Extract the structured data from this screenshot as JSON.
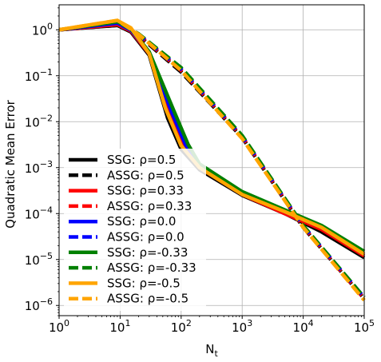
{
  "chart_data": {
    "type": "line",
    "title": "",
    "xlabel": "N",
    "xlabel_sub": "t",
    "ylabel": "Quadratic Mean Error",
    "xscale": "log",
    "yscale": "log",
    "xlim": [
      1,
      100000
    ],
    "ylim": [
      6e-07,
      3.5
    ],
    "grid": true,
    "legend_position": "lower-left",
    "x_ticks": [
      {
        "base": "10",
        "exp": "0"
      },
      {
        "base": "10",
        "exp": "1"
      },
      {
        "base": "10",
        "exp": "2"
      },
      {
        "base": "10",
        "exp": "3"
      },
      {
        "base": "10",
        "exp": "4"
      },
      {
        "base": "10",
        "exp": "5"
      }
    ],
    "y_ticks": [
      {
        "base": "10",
        "exp": "−6"
      },
      {
        "base": "10",
        "exp": "−5"
      },
      {
        "base": "10",
        "exp": "−4"
      },
      {
        "base": "10",
        "exp": "−3"
      },
      {
        "base": "10",
        "exp": "−2"
      },
      {
        "base": "10",
        "exp": "−1"
      },
      {
        "base": "10",
        "exp": "0"
      }
    ],
    "series": [
      {
        "name": "SSG: ρ=0.5",
        "color": "#000000",
        "style": "solid",
        "x": [
          1,
          9,
          15,
          30,
          60,
          100,
          200,
          1000,
          5000,
          20000,
          100000
        ],
        "y": [
          1.0,
          1.25,
          0.9,
          0.28,
          0.012,
          0.0025,
          0.0009,
          0.00025,
          0.0001,
          4e-05,
          1.1e-05
        ]
      },
      {
        "name": "ASSG: ρ=0.5",
        "color": "#000000",
        "style": "dashed",
        "x": [
          1,
          9,
          20,
          100,
          1000,
          10000,
          100000
        ],
        "y": [
          1.0,
          1.25,
          0.75,
          0.12,
          0.0045,
          5e-05,
          1.4e-06
        ]
      },
      {
        "name": "SSG: ρ=0.33",
        "color": "#ff0000",
        "style": "solid",
        "x": [
          1,
          9,
          15,
          30,
          65,
          110,
          200,
          1000,
          5000,
          20000,
          100000
        ],
        "y": [
          1.0,
          1.3,
          0.95,
          0.3,
          0.014,
          0.0028,
          0.001,
          0.00026,
          0.0001,
          4.5e-05,
          1.2e-05
        ]
      },
      {
        "name": "ASSG: ρ=0.33",
        "color": "#ff0000",
        "style": "dashed",
        "x": [
          1,
          9,
          20,
          100,
          1000,
          10000,
          100000
        ],
        "y": [
          1.0,
          1.3,
          0.78,
          0.13,
          0.0047,
          5.2e-05,
          1.4e-06
        ]
      },
      {
        "name": "SSG: ρ=0.0",
        "color": "#0000ff",
        "style": "solid",
        "x": [
          1,
          9,
          15,
          30,
          70,
          120,
          200,
          1000,
          5000,
          20000,
          100000
        ],
        "y": [
          1.0,
          1.4,
          1.0,
          0.32,
          0.016,
          0.003,
          0.0011,
          0.00027,
          0.00011,
          5e-05,
          1.3e-05
        ]
      },
      {
        "name": "ASSG: ρ=0.0",
        "color": "#0000ff",
        "style": "dashed",
        "x": [
          1,
          9,
          20,
          100,
          1000,
          10000,
          100000
        ],
        "y": [
          1.0,
          1.4,
          0.8,
          0.14,
          0.0048,
          5.4e-05,
          1.5e-06
        ]
      },
      {
        "name": "SSG: ρ=-0.33",
        "color": "#008000",
        "style": "solid",
        "x": [
          1,
          9,
          15,
          30,
          75,
          130,
          200,
          1000,
          5000,
          20000,
          100000
        ],
        "y": [
          1.0,
          1.5,
          1.05,
          0.33,
          0.018,
          0.0032,
          0.0012,
          0.0003,
          0.00012,
          5.5e-05,
          1.5e-05
        ]
      },
      {
        "name": "ASSG: ρ=-0.33",
        "color": "#008000",
        "style": "dashed",
        "x": [
          1,
          9,
          20,
          100,
          1000,
          10000,
          100000
        ],
        "y": [
          1.0,
          1.5,
          0.82,
          0.15,
          0.005,
          5.5e-05,
          1.5e-06
        ]
      },
      {
        "name": "SSG: ρ=-0.5",
        "color": "#ffa500",
        "style": "solid",
        "x": [
          1,
          9,
          15,
          30,
          55,
          100,
          200,
          1000,
          5000,
          20000,
          100000
        ],
        "y": [
          1.0,
          1.6,
          1.1,
          0.3,
          0.02,
          0.003,
          0.001,
          0.00026,
          0.00011,
          5e-05,
          1.3e-05
        ]
      },
      {
        "name": "ASSG: ρ=-0.5",
        "color": "#ffa500",
        "style": "dashed",
        "x": [
          1,
          9,
          20,
          100,
          1000,
          10000,
          100000
        ],
        "y": [
          1.0,
          1.6,
          0.8,
          0.13,
          0.0043,
          5e-05,
          1.3e-06
        ]
      }
    ]
  }
}
